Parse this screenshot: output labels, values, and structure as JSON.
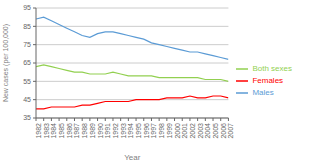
{
  "chart_data": {
    "type": "line",
    "x_label": "Year",
    "y_label": "New cases (per 100,000)",
    "x": [
      1982,
      1983,
      1984,
      1985,
      1986,
      1987,
      1988,
      1989,
      1990,
      1991,
      1992,
      1993,
      1994,
      1995,
      1996,
      1997,
      1998,
      1999,
      2000,
      2001,
      2002,
      2003,
      2004,
      2005,
      2006,
      2007
    ],
    "series": [
      {
        "name": "Both sexes",
        "color": "#92D050",
        "values": [
          63,
          64,
          63,
          62,
          61,
          60,
          60,
          59,
          59,
          59,
          60,
          59,
          58,
          58,
          58,
          58,
          57,
          57,
          57,
          57,
          57,
          57,
          56,
          56,
          56,
          55
        ]
      },
      {
        "name": "Males",
        "color": "#5B9BD5",
        "values": [
          89,
          90,
          88,
          86,
          84,
          82,
          80,
          79,
          81,
          82,
          82,
          81,
          80,
          79,
          78,
          76,
          75,
          74,
          73,
          72,
          71,
          71,
          70,
          69,
          68,
          67
        ]
      },
      {
        "name": "Females",
        "color": "#FF0000",
        "values": [
          40,
          40,
          41,
          41,
          41,
          41,
          42,
          42,
          43,
          44,
          44,
          44,
          44,
          45,
          45,
          45,
          45,
          46,
          46,
          46,
          47,
          46,
          46,
          47,
          47,
          46
        ]
      }
    ],
    "xlim": [
      1982,
      2007
    ],
    "xticks": [
      1982,
      1983,
      1984,
      1985,
      1986,
      1987,
      1988,
      1989,
      1990,
      1991,
      1992,
      1993,
      1994,
      1995,
      1996,
      1997,
      1998,
      1999,
      2000,
      2001,
      2002,
      2003,
      2004,
      2005,
      2006,
      2007
    ],
    "ylim": [
      35,
      95
    ],
    "yticks": [
      35,
      45,
      55,
      65,
      75,
      85,
      95
    ],
    "grid": true,
    "legend": "right"
  }
}
